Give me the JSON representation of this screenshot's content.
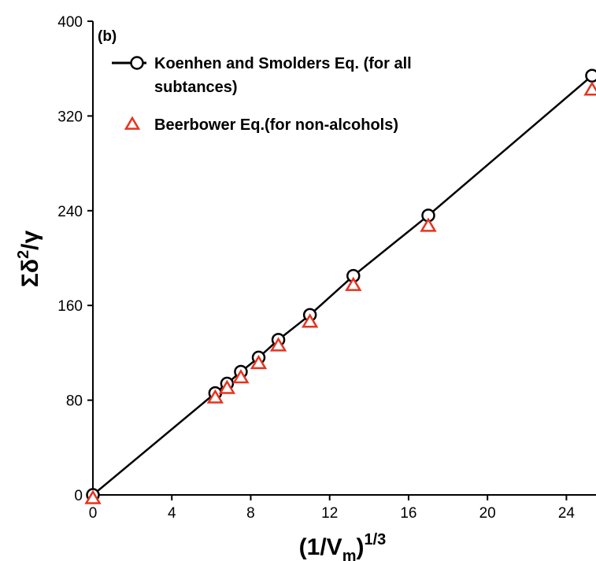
{
  "chart_data": {
    "type": "line",
    "panel_label": "(b)",
    "xlabel": {
      "base": "(1/V",
      "sub": "m",
      "close": ")",
      "sup": "1/3"
    },
    "ylabel": {
      "base": "Σδ",
      "sup": "2",
      "tail": "/γ"
    },
    "xlim": [
      0,
      25.5
    ],
    "ylim": [
      0,
      400
    ],
    "x_ticks": [
      0,
      4,
      8,
      12,
      16,
      20,
      24
    ],
    "y_ticks": [
      0,
      80,
      160,
      240,
      320,
      400
    ],
    "x_tick_labels": [
      "0",
      "4",
      "8",
      "12",
      "16",
      "20",
      "24"
    ],
    "y_tick_labels": [
      "0",
      "80",
      "160",
      "240",
      "320",
      "400"
    ],
    "grid": false,
    "legend_position": "top-left",
    "series": [
      {
        "name_lines": [
          "Koenhen and Smolders Eq. (for all",
          "subtances)"
        ],
        "marker": "circle",
        "line": true,
        "color": "#000000",
        "x": [
          0,
          6.2,
          6.8,
          7.5,
          8.4,
          9.4,
          11.0,
          13.2,
          17.0,
          25.3
        ],
        "y": [
          0,
          86,
          94,
          104,
          116,
          131,
          152,
          185,
          236,
          354
        ]
      },
      {
        "name_lines": [
          "Beerbower Eq.(for non-alcohols)"
        ],
        "marker": "triangle",
        "line": false,
        "color": "#e8321e",
        "x": [
          0,
          6.2,
          6.8,
          7.5,
          8.4,
          9.4,
          11.0,
          13.2,
          17.0,
          25.3
        ],
        "y": [
          -3,
          82,
          90,
          99,
          111,
          126,
          146,
          177,
          227,
          342
        ]
      }
    ]
  }
}
